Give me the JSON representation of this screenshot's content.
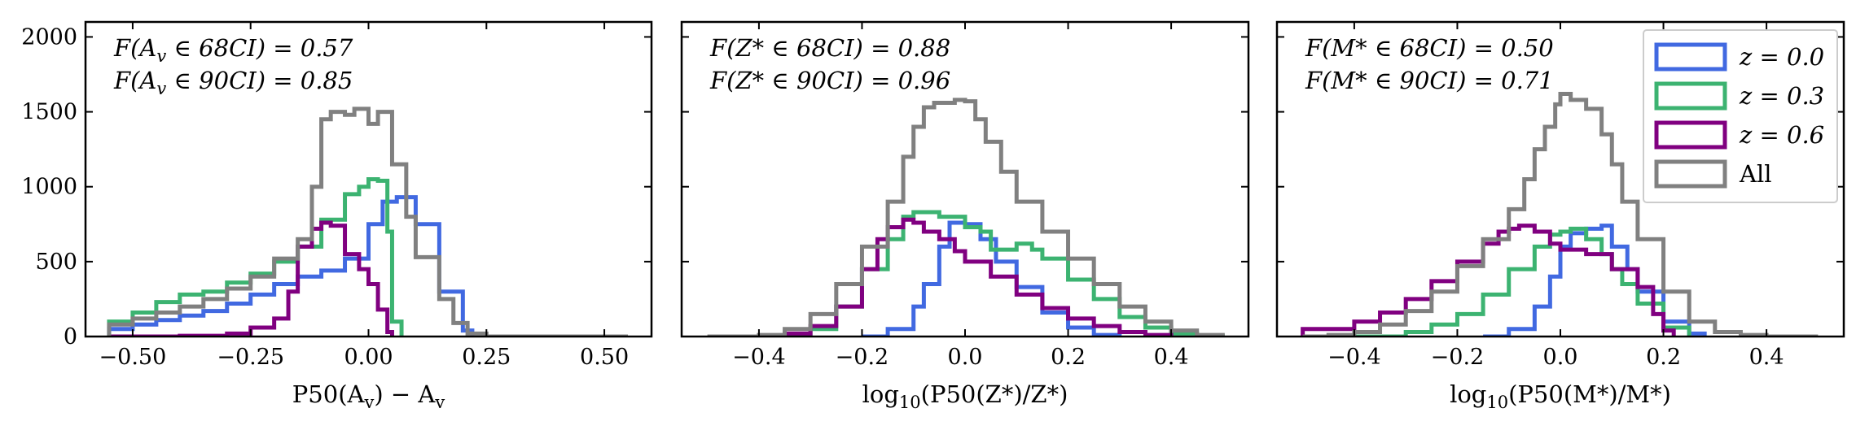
{
  "figure": {
    "panels": [
      {
        "id": "av",
        "xlabel": "P50(A_v) − A_v",
        "annotations": [
          "F(A_v ∈ 68CI) = 0.57",
          "F(A_v ∈ 90CI) = 0.85"
        ]
      },
      {
        "id": "z",
        "xlabel": "log10(P50(Z*)/Z*)",
        "annotations": [
          "F(Z* ∈ 68CI) = 0.88",
          "F(Z* ∈ 90CI) = 0.96"
        ]
      },
      {
        "id": "m",
        "xlabel": "log10(P50(M*)/M*)",
        "annotations": [
          "F(M* ∈ 68CI) = 0.50",
          "F(M* ∈ 90CI) = 0.71"
        ]
      }
    ],
    "legend": [
      {
        "label": "z = 0.0",
        "color": "#4169e1"
      },
      {
        "label": "z = 0.3",
        "color": "#3cb371"
      },
      {
        "label": "z = 0.6",
        "color": "#800080"
      },
      {
        "label": "All",
        "color": "#808080"
      }
    ]
  },
  "chart_data": [
    {
      "type": "histogram",
      "title": "",
      "xlabel": "P50(A_v) − A_v",
      "ylabel": "",
      "xlim": [
        -0.6,
        0.6
      ],
      "ylim": [
        0,
        2100
      ],
      "xticks": [
        -0.5,
        -0.25,
        0.0,
        0.25,
        0.5
      ],
      "xtick_labels": [
        "−0.50",
        "−0.25",
        "0.00",
        "0.25",
        "0.50"
      ],
      "yticks": [
        0,
        500,
        1000,
        1500,
        2000
      ],
      "ytick_labels": [
        "0",
        "500",
        "1000",
        "1500",
        "2000"
      ],
      "series": [
        {
          "name": "z = 0.0",
          "color": "#4169e1",
          "x": [
            -0.55,
            -0.5,
            -0.45,
            -0.4,
            -0.35,
            -0.3,
            -0.25,
            -0.2,
            -0.15,
            -0.1,
            -0.05,
            0.0,
            0.03,
            0.06,
            0.1,
            0.15,
            0.2,
            0.22
          ],
          "y": [
            50,
            80,
            110,
            140,
            170,
            220,
            280,
            350,
            400,
            440,
            520,
            750,
            900,
            930,
            750,
            300,
            40,
            0
          ]
        },
        {
          "name": "z = 0.3",
          "color": "#3cb371",
          "x": [
            -0.55,
            -0.5,
            -0.45,
            -0.4,
            -0.35,
            -0.3,
            -0.25,
            -0.2,
            -0.15,
            -0.1,
            -0.05,
            -0.02,
            0.0,
            0.02,
            0.04,
            0.05,
            0.07
          ],
          "y": [
            100,
            160,
            230,
            280,
            300,
            360,
            420,
            500,
            600,
            780,
            950,
            1000,
            1050,
            1040,
            700,
            100,
            0
          ]
        },
        {
          "name": "z = 0.6",
          "color": "#800080",
          "x": [
            -0.55,
            -0.4,
            -0.3,
            -0.25,
            -0.2,
            -0.17,
            -0.15,
            -0.12,
            -0.1,
            -0.08,
            -0.05,
            -0.02,
            0.0,
            0.02,
            0.04,
            0.05
          ],
          "y": [
            0,
            5,
            20,
            60,
            120,
            300,
            600,
            720,
            760,
            740,
            550,
            450,
            350,
            180,
            30,
            0
          ]
        },
        {
          "name": "All",
          "color": "#808080",
          "x": [
            -0.55,
            -0.5,
            -0.45,
            -0.4,
            -0.35,
            -0.3,
            -0.25,
            -0.2,
            -0.15,
            -0.12,
            -0.1,
            -0.08,
            -0.05,
            -0.03,
            0.0,
            0.02,
            0.05,
            0.08,
            0.1,
            0.15,
            0.18,
            0.21,
            0.25,
            0.55
          ],
          "y": [
            80,
            120,
            160,
            200,
            250,
            320,
            400,
            520,
            650,
            1000,
            1450,
            1500,
            1480,
            1520,
            1420,
            1500,
            1150,
            800,
            530,
            250,
            90,
            20,
            0,
            0
          ]
        }
      ]
    },
    {
      "type": "histogram",
      "title": "",
      "xlabel": "log10(P50(Z*)/Z*)",
      "ylabel": "",
      "xlim": [
        -0.55,
        0.55
      ],
      "ylim": [
        0,
        2100
      ],
      "xticks": [
        -0.4,
        -0.2,
        0.0,
        0.2,
        0.4
      ],
      "xtick_labels": [
        "−0.4",
        "−0.2",
        "0.0",
        "0.2",
        "0.4"
      ],
      "yticks": [
        0,
        500,
        1000,
        1500,
        2000
      ],
      "ytick_labels": [
        "",
        "",
        "",
        "",
        ""
      ],
      "series": [
        {
          "name": "z = 0.0",
          "color": "#4169e1",
          "x": [
            -0.2,
            -0.15,
            -0.1,
            -0.08,
            -0.05,
            -0.03,
            0.0,
            0.03,
            0.06,
            0.1,
            0.15,
            0.2,
            0.25,
            0.3
          ],
          "y": [
            0,
            50,
            200,
            350,
            600,
            760,
            750,
            650,
            500,
            330,
            160,
            60,
            10,
            0
          ]
        },
        {
          "name": "z = 0.3",
          "color": "#3cb371",
          "x": [
            -0.35,
            -0.3,
            -0.25,
            -0.2,
            -0.15,
            -0.12,
            -0.1,
            -0.05,
            0.0,
            0.03,
            0.05,
            0.08,
            0.1,
            0.13,
            0.15,
            0.2,
            0.25,
            0.3,
            0.35,
            0.4,
            0.45,
            0.5
          ],
          "y": [
            0,
            50,
            200,
            450,
            650,
            800,
            830,
            800,
            730,
            700,
            580,
            580,
            620,
            580,
            520,
            380,
            250,
            130,
            60,
            20,
            5,
            0
          ]
        },
        {
          "name": "z = 0.6",
          "color": "#800080",
          "x": [
            -0.42,
            -0.35,
            -0.3,
            -0.25,
            -0.2,
            -0.17,
            -0.15,
            -0.12,
            -0.1,
            -0.08,
            -0.05,
            -0.02,
            0.0,
            0.05,
            0.1,
            0.15,
            0.2,
            0.25,
            0.3,
            0.35,
            0.4
          ],
          "y": [
            0,
            20,
            70,
            200,
            450,
            650,
            730,
            780,
            760,
            700,
            650,
            570,
            500,
            400,
            280,
            190,
            120,
            70,
            30,
            10,
            0
          ]
        },
        {
          "name": "All",
          "color": "#808080",
          "x": [
            -0.5,
            -0.4,
            -0.35,
            -0.3,
            -0.25,
            -0.2,
            -0.15,
            -0.12,
            -0.1,
            -0.08,
            -0.06,
            -0.04,
            -0.02,
            0.0,
            0.02,
            0.04,
            0.07,
            0.1,
            0.15,
            0.2,
            0.25,
            0.3,
            0.35,
            0.4,
            0.45,
            0.5
          ],
          "y": [
            0,
            10,
            50,
            150,
            350,
            600,
            900,
            1200,
            1400,
            1530,
            1560,
            1560,
            1580,
            1570,
            1450,
            1300,
            1100,
            900,
            700,
            520,
            350,
            200,
            100,
            40,
            10,
            0
          ]
        }
      ]
    },
    {
      "type": "histogram",
      "title": "",
      "xlabel": "log10(P50(M*)/M*)",
      "ylabel": "",
      "xlim": [
        -0.55,
        0.55
      ],
      "ylim": [
        0,
        2100
      ],
      "xticks": [
        -0.4,
        -0.2,
        0.0,
        0.2,
        0.4
      ],
      "xtick_labels": [
        "−0.4",
        "−0.2",
        "0.0",
        "0.2",
        "0.4"
      ],
      "yticks": [
        0,
        500,
        1000,
        1500,
        2000
      ],
      "ytick_labels": [
        "",
        "",
        "",
        "",
        ""
      ],
      "series": [
        {
          "name": "z = 0.0",
          "color": "#4169e1",
          "x": [
            -0.15,
            -0.1,
            -0.05,
            -0.02,
            0.0,
            0.02,
            0.05,
            0.08,
            0.1,
            0.13,
            0.15,
            0.2,
            0.25,
            0.28
          ],
          "y": [
            0,
            50,
            200,
            400,
            600,
            690,
            720,
            740,
            600,
            450,
            300,
            100,
            20,
            0
          ]
        },
        {
          "name": "z = 0.3",
          "color": "#3cb371",
          "x": [
            -0.4,
            -0.3,
            -0.25,
            -0.2,
            -0.15,
            -0.1,
            -0.05,
            -0.02,
            0.0,
            0.02,
            0.05,
            0.08,
            0.1,
            0.12,
            0.15,
            0.2,
            0.25
          ],
          "y": [
            0,
            30,
            80,
            150,
            280,
            450,
            600,
            680,
            700,
            720,
            650,
            550,
            450,
            350,
            220,
            60,
            0
          ]
        },
        {
          "name": "z = 0.6",
          "color": "#800080",
          "x": [
            -0.5,
            -0.4,
            -0.35,
            -0.3,
            -0.25,
            -0.2,
            -0.15,
            -0.12,
            -0.1,
            -0.08,
            -0.05,
            -0.02,
            0.0,
            0.05,
            0.1,
            0.15,
            0.18,
            0.2,
            0.22
          ],
          "y": [
            50,
            100,
            160,
            250,
            370,
            500,
            620,
            700,
            720,
            740,
            700,
            620,
            580,
            550,
            450,
            330,
            150,
            40,
            0
          ]
        },
        {
          "name": "All",
          "color": "#808080",
          "x": [
            -0.5,
            -0.45,
            -0.4,
            -0.35,
            -0.3,
            -0.25,
            -0.2,
            -0.15,
            -0.1,
            -0.07,
            -0.05,
            -0.03,
            -0.01,
            0.0,
            0.02,
            0.05,
            0.08,
            0.1,
            0.12,
            0.15,
            0.2,
            0.25,
            0.3,
            0.35,
            0.4,
            0.5
          ],
          "y": [
            0,
            10,
            30,
            80,
            170,
            300,
            470,
            650,
            850,
            1050,
            1250,
            1400,
            1550,
            1620,
            1580,
            1520,
            1350,
            1150,
            900,
            650,
            300,
            100,
            30,
            10,
            0,
            0
          ]
        }
      ]
    }
  ]
}
